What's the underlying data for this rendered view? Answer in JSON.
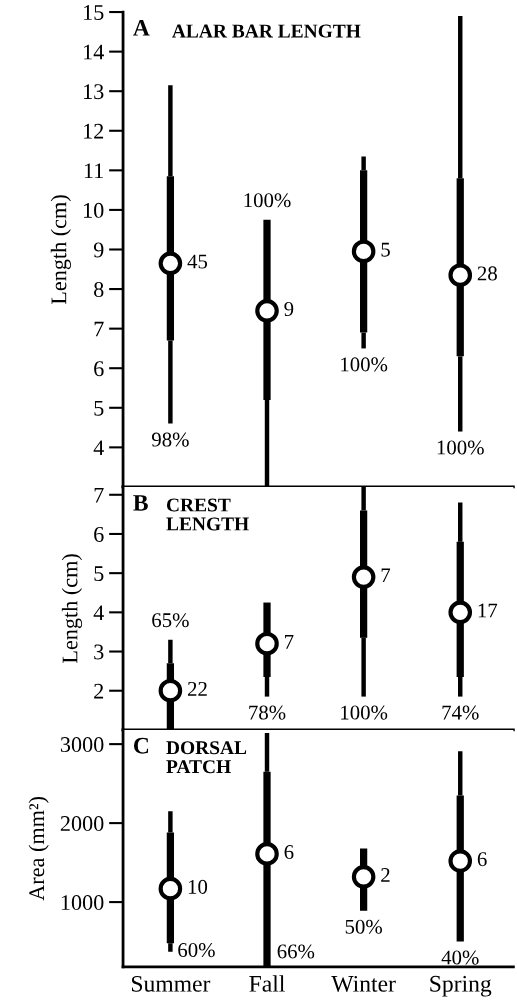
{
  "chart_data": [
    {
      "type": "box",
      "title": "A",
      "subtitle": "ALAR BAR LENGTH",
      "ylabel": "Length (cm)",
      "categories": [
        null,
        null,
        null,
        null
      ],
      "ylim": [
        3,
        15
      ],
      "yticks": [
        4,
        5,
        6,
        7,
        8,
        9,
        10,
        11,
        12,
        13,
        14,
        15
      ],
      "tick_labels": "y",
      "grid": false,
      "legend": false,
      "boxes": [
        {
          "low": 4.6,
          "q1": 6.7,
          "median": 8.65,
          "q3": 10.85,
          "high": 13.15
        },
        {
          "low": 3,
          "q1": 5.2,
          "median": 7.45,
          "q3": 9.75,
          "high": 9.75
        },
        {
          "low": 6.5,
          "q1": 6.9,
          "median": 8.95,
          "q3": 11.0,
          "high": 11.35
        },
        {
          "low": 4.4,
          "q1": 6.3,
          "median": 8.35,
          "q3": 10.8,
          "high": 14.9
        }
      ],
      "annotations": [
        "45",
        "9",
        "5",
        "28",
        "98%",
        "100%",
        "100%",
        "100%"
      ]
    },
    {
      "type": "box",
      "title": "B",
      "subtitle": "CREST\nLENGTH",
      "ylabel": "Length (cm)",
      "categories": [
        null,
        null,
        null,
        null
      ],
      "ylim": [
        1,
        7.2
      ],
      "yticks": [
        2,
        3,
        4,
        5,
        6,
        7
      ],
      "tick_labels": "y",
      "grid": false,
      "legend": false,
      "boxes": [
        {
          "low": 1,
          "q1": 1,
          "median": 2.0,
          "q3": 2.7,
          "high": 3.3
        },
        {
          "low": 1.85,
          "q1": 2.35,
          "median": 3.2,
          "q3": 4.25,
          "high": 4.25
        },
        {
          "low": 1.85,
          "q1": 3.35,
          "median": 4.9,
          "q3": 6.6,
          "high": 7.2
        },
        {
          "low": 1.85,
          "q1": 2.35,
          "median": 4.0,
          "q3": 5.8,
          "high": 6.8
        }
      ],
      "annotations": [
        "22",
        "7",
        "7",
        "17",
        "65%",
        "78%",
        "100%",
        "74%"
      ]
    },
    {
      "type": "box",
      "title": "C",
      "subtitle": "DORSAL\nPATCH",
      "ylabel": "Area (mm²)",
      "categories": [
        "Summer",
        "Fall",
        "Winter",
        "Spring"
      ],
      "ylim": [
        180,
        3180
      ],
      "yticks": [
        1000,
        2000,
        3000
      ],
      "grid": false,
      "legend": false,
      "boxes": [
        {
          "low": 370,
          "q1": 480,
          "median": 1170,
          "q3": 1880,
          "high": 2150
        },
        {
          "low": 180,
          "q1": 180,
          "median": 1610,
          "q3": 2650,
          "high": 3140
        },
        {
          "low": 890,
          "q1": 890,
          "median": 1320,
          "q3": 1680,
          "high": 1680
        },
        {
          "low": 500,
          "q1": 500,
          "median": 1520,
          "q3": 2350,
          "high": 2910
        }
      ],
      "annotations": [
        "10",
        "6",
        "2",
        "6",
        "60%",
        "66%",
        "50%",
        "40%"
      ]
    }
  ]
}
